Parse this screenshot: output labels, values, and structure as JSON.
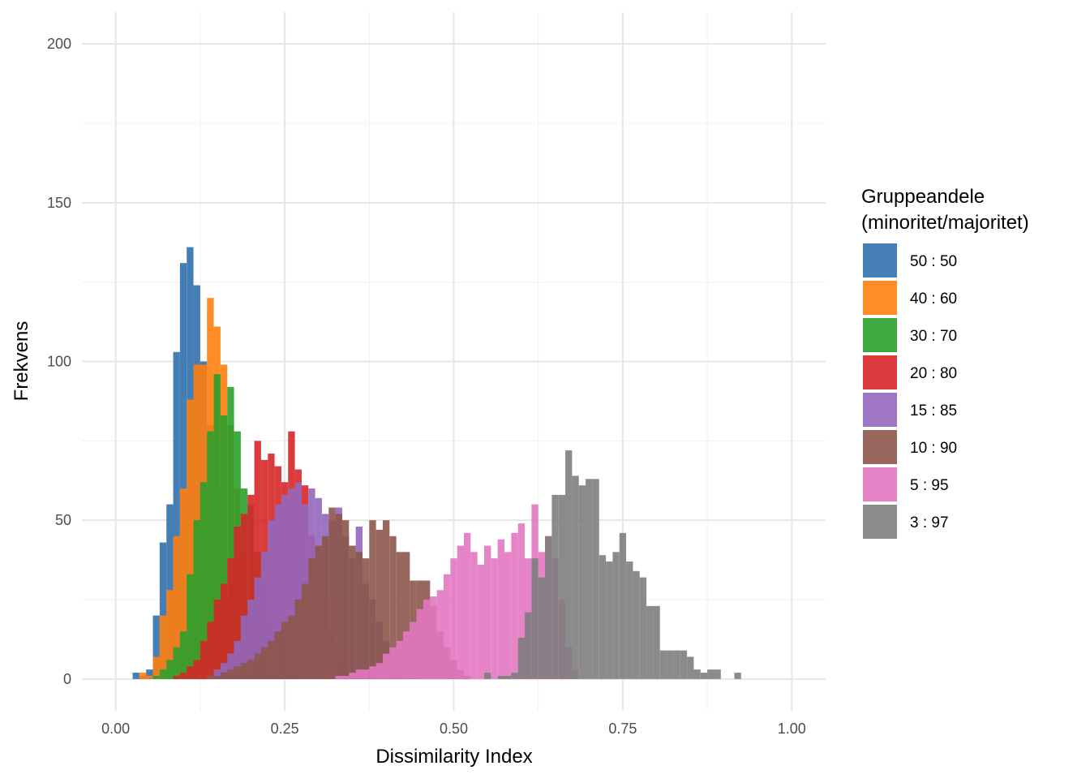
{
  "chart_data": {
    "type": "histogram",
    "x_label": "Dissimilarity Index",
    "y_label": "Frekvens",
    "legend_title": [
      "Gruppeandele",
      "(minoritet/majoritet)"
    ],
    "legend_position": "right",
    "grid": true,
    "minor_grid": true,
    "opacity": 0.9,
    "xlim": [
      -0.05,
      1.05
    ],
    "ylim": [
      -10,
      210
    ],
    "xticks": [
      {
        "value": 0,
        "label": "0.00"
      },
      {
        "value": 0.25,
        "label": "0.25"
      },
      {
        "value": 0.5,
        "label": "0.50"
      },
      {
        "value": 0.75,
        "label": "0.75"
      },
      {
        "value": 1,
        "label": "1.00"
      }
    ],
    "yticks": [
      0,
      50,
      100,
      150,
      200
    ],
    "series": [
      {
        "name": "50 : 50",
        "color": "#3171ae",
        "bins": [
          0.025,
          0.035,
          0.045,
          0.055,
          0.065,
          0.075,
          0.085,
          0.095,
          0.105,
          0.115,
          0.125,
          0.135,
          0.145,
          0.155,
          0.165,
          0.175,
          0.185,
          0.195,
          0.205
        ],
        "values": [
          2,
          1,
          3,
          20,
          43,
          55,
          103,
          131,
          136,
          124,
          100,
          80,
          60,
          40,
          25,
          12,
          5,
          2
        ]
      },
      {
        "name": "40 : 60",
        "color": "#ff7f0e",
        "bins": [
          0.035,
          0.045,
          0.055,
          0.065,
          0.075,
          0.085,
          0.095,
          0.105,
          0.115,
          0.125,
          0.135,
          0.145,
          0.155,
          0.165,
          0.175,
          0.185,
          0.195,
          0.205,
          0.215,
          0.225,
          0.235,
          0.245
        ],
        "values": [
          2,
          1,
          7,
          20,
          28,
          45,
          60,
          88,
          99,
          99,
          120,
          111,
          99,
          80,
          60,
          40,
          25,
          15,
          8,
          3,
          1
        ]
      },
      {
        "name": "30 : 70",
        "color": "#2ca02c",
        "bins": [
          0.055,
          0.065,
          0.075,
          0.085,
          0.095,
          0.105,
          0.115,
          0.125,
          0.135,
          0.145,
          0.155,
          0.165,
          0.175,
          0.185,
          0.195,
          0.205,
          0.215,
          0.225,
          0.235,
          0.245,
          0.255,
          0.265,
          0.275
        ],
        "values": [
          1,
          3,
          6,
          10,
          15,
          33,
          50,
          62,
          78,
          96,
          83,
          92,
          78,
          60,
          55,
          40,
          30,
          18,
          10,
          5,
          2,
          1
        ]
      },
      {
        "name": "20 : 80",
        "color": "#d62728",
        "bins": [
          0.085,
          0.095,
          0.105,
          0.115,
          0.125,
          0.135,
          0.145,
          0.155,
          0.165,
          0.175,
          0.185,
          0.195,
          0.205,
          0.215,
          0.225,
          0.235,
          0.245,
          0.255,
          0.265,
          0.275,
          0.285,
          0.295,
          0.305,
          0.315,
          0.325,
          0.335,
          0.345,
          0.355,
          0.365
        ],
        "values": [
          1,
          2,
          4,
          6,
          12,
          18,
          25,
          30,
          38,
          48,
          52,
          58,
          75,
          69,
          71,
          67,
          62,
          78,
          66,
          61,
          45,
          35,
          25,
          15,
          10,
          5,
          2,
          1
        ]
      },
      {
        "name": "15 : 85",
        "color": "#9467bd",
        "bins": [
          0.135,
          0.145,
          0.155,
          0.165,
          0.175,
          0.185,
          0.195,
          0.205,
          0.215,
          0.225,
          0.235,
          0.245,
          0.255,
          0.265,
          0.275,
          0.285,
          0.295,
          0.305,
          0.315,
          0.325,
          0.335,
          0.345,
          0.355,
          0.365,
          0.375,
          0.385,
          0.395,
          0.405,
          0.415,
          0.425,
          0.435,
          0.445
        ],
        "values": [
          1,
          3,
          5,
          8,
          12,
          20,
          25,
          32,
          40,
          50,
          55,
          58,
          60,
          62,
          55,
          60,
          57,
          52,
          50,
          54,
          45,
          38,
          48,
          30,
          25,
          18,
          12,
          8,
          5,
          2,
          1
        ]
      },
      {
        "name": "10 : 90",
        "color": "#8c564b",
        "bins": [
          0.135,
          0.145,
          0.155,
          0.165,
          0.175,
          0.185,
          0.195,
          0.205,
          0.215,
          0.225,
          0.235,
          0.245,
          0.255,
          0.265,
          0.275,
          0.285,
          0.295,
          0.305,
          0.315,
          0.325,
          0.335,
          0.345,
          0.355,
          0.365,
          0.375,
          0.385,
          0.395,
          0.405,
          0.415,
          0.425,
          0.435,
          0.445,
          0.455,
          0.465,
          0.475,
          0.485,
          0.495,
          0.505,
          0.515,
          0.525
        ],
        "values": [
          1,
          1,
          2,
          3,
          4,
          5,
          6,
          8,
          10,
          12,
          15,
          18,
          20,
          25,
          30,
          38,
          42,
          45,
          54,
          52,
          50,
          42,
          40,
          38,
          50,
          47,
          50,
          45,
          40,
          40,
          31,
          31,
          31,
          23,
          15,
          10,
          6,
          3,
          1
        ]
      },
      {
        "name": "5 : 95",
        "color": "#e377c2",
        "bins": [
          0.325,
          0.335,
          0.345,
          0.355,
          0.365,
          0.375,
          0.385,
          0.395,
          0.405,
          0.415,
          0.425,
          0.435,
          0.445,
          0.455,
          0.465,
          0.475,
          0.485,
          0.495,
          0.505,
          0.515,
          0.525,
          0.535,
          0.545,
          0.555,
          0.565,
          0.575,
          0.585,
          0.595,
          0.605,
          0.615,
          0.625,
          0.635,
          0.645,
          0.655,
          0.665,
          0.675,
          0.685
        ],
        "values": [
          1,
          1,
          2,
          3,
          3,
          4,
          5,
          8,
          10,
          12,
          15,
          18,
          22,
          25,
          26,
          28,
          33,
          38,
          42,
          46,
          40,
          36,
          42,
          38,
          44,
          40,
          46,
          49,
          38,
          55,
          40,
          45,
          38,
          25,
          10,
          3
        ]
      },
      {
        "name": "3 : 97",
        "color": "#7f7f7f",
        "bins": [
          0.545,
          0.555,
          0.565,
          0.575,
          0.585,
          0.595,
          0.605,
          0.615,
          0.625,
          0.635,
          0.645,
          0.655,
          0.665,
          0.675,
          0.685,
          0.695,
          0.705,
          0.715,
          0.725,
          0.735,
          0.745,
          0.755,
          0.765,
          0.775,
          0.785,
          0.795,
          0.805,
          0.815,
          0.825,
          0.835,
          0.845,
          0.855,
          0.865,
          0.875,
          0.885,
          0.895,
          0.905,
          0.915,
          0.925
        ],
        "values": [
          2,
          0,
          1,
          1,
          2,
          13,
          21,
          38,
          32,
          45,
          58,
          58,
          72,
          64,
          61,
          63,
          63,
          39,
          37,
          40,
          46,
          37,
          34,
          32,
          23,
          23,
          9,
          9,
          9,
          9,
          7,
          3,
          2,
          3,
          3,
          0,
          0,
          2
        ]
      }
    ]
  }
}
